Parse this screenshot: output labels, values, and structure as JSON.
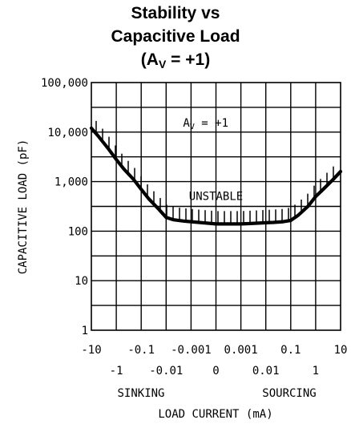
{
  "chart_data": {
    "type": "line",
    "title_lines": [
      "Stability vs",
      "Capacitive Load"
    ],
    "title_gain": {
      "prefix": "(A",
      "subscript": "V",
      "suffix": " = +1)"
    },
    "ylabel": "CAPACITIVE LOAD (pF)",
    "xlabel": "LOAD CURRENT (mA)",
    "x_side_labels": {
      "left": "SINKING",
      "right": "SOURCING"
    },
    "y_scale": "log",
    "ylim": [
      1,
      100000
    ],
    "y_ticks": [
      {
        "value": 1,
        "label": "1"
      },
      {
        "value": 10,
        "label": "10"
      },
      {
        "value": 100,
        "label": "100"
      },
      {
        "value": 1000,
        "label": "1,000"
      },
      {
        "value": 10000,
        "label": "10,000"
      },
      {
        "value": 100000,
        "label": "100,000"
      }
    ],
    "x_ticks_upper": [
      "-10",
      "-0.1",
      "-0.001",
      "0.001",
      "0.1",
      "10"
    ],
    "x_ticks_lower": [
      "-1",
      "-0.01",
      "0",
      "0.01",
      "1"
    ],
    "x_tick_values": [
      -10,
      -1,
      -0.1,
      -0.01,
      -0.001,
      0,
      0.001,
      0.01,
      0.1,
      1,
      10
    ],
    "grid": true,
    "annotations": [
      {
        "text": "UNSTABLE",
        "x": 0,
        "y": 430
      },
      {
        "gain_prefix": "A",
        "gain_subscript": "V",
        "gain_suffix": " = +1",
        "x": -0.001,
        "y": 13000
      }
    ],
    "series": [
      {
        "x": [
          -10,
          -5,
          -2,
          -1,
          -0.5,
          -0.2,
          -0.1,
          -0.05,
          -0.02,
          -0.01,
          -0.005,
          -0.002,
          -0.001,
          0,
          0.001,
          0.002,
          0.005,
          0.01,
          0.02,
          0.05,
          0.1,
          0.2,
          0.5,
          1,
          2,
          5,
          10
        ],
        "y": [
          12000,
          8000,
          4500,
          2800,
          1800,
          1100,
          700,
          450,
          280,
          190,
          170,
          160,
          155,
          140,
          140,
          142,
          145,
          148,
          150,
          155,
          165,
          210,
          320,
          500,
          700,
          1100,
          1600
        ]
      }
    ]
  }
}
